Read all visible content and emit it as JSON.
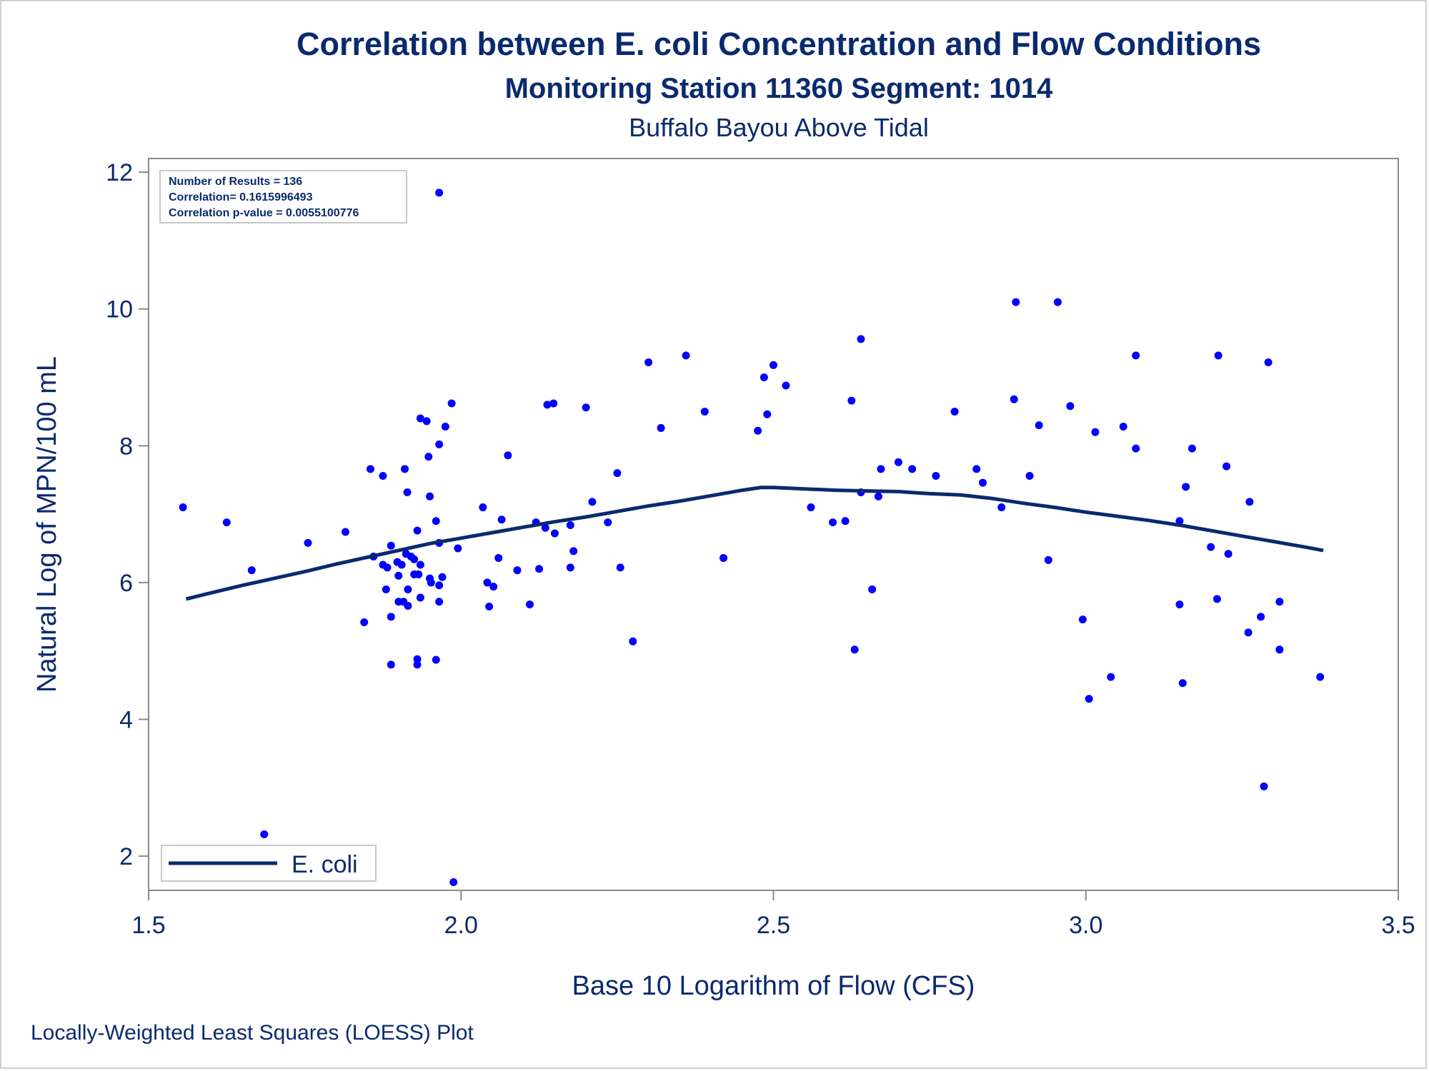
{
  "chart_data": {
    "type": "scatter",
    "title": "Correlation between E. coli Concentration and Flow Conditions",
    "subtitle": "Monitoring Station 11360 Segment: 1014",
    "subtitle2": "Buffalo Bayou Above Tidal",
    "xlabel": "Base 10 Logarithm of Flow (CFS)",
    "ylabel": "Natural Log of MPN/100 mL",
    "footnote": "Locally-Weighted Least Squares (LOESS) Plot",
    "xlim": [
      1.5,
      3.5
    ],
    "ylim": [
      1.5,
      12.2
    ],
    "xticks": [
      1.5,
      2.0,
      2.5,
      3.0,
      3.5
    ],
    "xtick_labels": [
      "1.5",
      "2.0",
      "2.5",
      "3.0",
      "3.5"
    ],
    "yticks": [
      2,
      4,
      6,
      8,
      10,
      12
    ],
    "ytick_labels": [
      "2",
      "4",
      "6",
      "8",
      "10",
      "12"
    ],
    "grid": false,
    "legend_position": "bottom-left",
    "inset": {
      "lines": [
        "Number of Results = 136",
        "Correlation= 0.1615996493",
        "Correlation p-value = 0.0055100776"
      ],
      "position": "top-left"
    },
    "colors": {
      "points": "#0000ff",
      "line": "#0a2a6e",
      "text": "#0a2a6e",
      "axis": "#8a8a8a"
    },
    "series": [
      {
        "name": "E. coli",
        "kind": "loess-line",
        "x": [
          1.56,
          1.6,
          1.65,
          1.7,
          1.75,
          1.8,
          1.85,
          1.9,
          1.95,
          2.0,
          2.05,
          2.1,
          2.15,
          2.2,
          2.25,
          2.3,
          2.35,
          2.4,
          2.45,
          2.48,
          2.5,
          2.55,
          2.6,
          2.65,
          2.7,
          2.75,
          2.8,
          2.85,
          2.9,
          2.95,
          3.0,
          3.05,
          3.1,
          3.15,
          3.2,
          3.25,
          3.3,
          3.35,
          3.38
        ],
        "y": [
          5.76,
          5.85,
          5.96,
          6.06,
          6.16,
          6.27,
          6.37,
          6.47,
          6.57,
          6.65,
          6.73,
          6.81,
          6.89,
          6.96,
          7.04,
          7.12,
          7.19,
          7.27,
          7.35,
          7.39,
          7.39,
          7.37,
          7.35,
          7.34,
          7.33,
          7.3,
          7.28,
          7.23,
          7.16,
          7.1,
          7.03,
          6.97,
          6.91,
          6.84,
          6.76,
          6.68,
          6.6,
          6.52,
          6.47
        ]
      },
      {
        "kind": "points",
        "points": [
          [
            1.555,
            7.1
          ],
          [
            1.625,
            6.88
          ],
          [
            1.665,
            6.18
          ],
          [
            1.685,
            2.32
          ],
          [
            1.755,
            6.58
          ],
          [
            1.815,
            6.74
          ],
          [
            1.845,
            5.42
          ],
          [
            1.855,
            7.66
          ],
          [
            1.86,
            6.38
          ],
          [
            1.875,
            7.56
          ],
          [
            1.875,
            6.26
          ],
          [
            1.88,
            5.9
          ],
          [
            1.882,
            6.22
          ],
          [
            1.888,
            6.54
          ],
          [
            1.888,
            5.5
          ],
          [
            1.888,
            4.8
          ],
          [
            1.898,
            6.3
          ],
          [
            1.9,
            6.1
          ],
          [
            1.9,
            5.72
          ],
          [
            1.905,
            6.26
          ],
          [
            1.908,
            5.72
          ],
          [
            1.91,
            7.66
          ],
          [
            1.912,
            6.42
          ],
          [
            1.914,
            7.32
          ],
          [
            1.915,
            5.9
          ],
          [
            1.915,
            5.66
          ],
          [
            1.92,
            6.38
          ],
          [
            1.925,
            6.34
          ],
          [
            1.925,
            6.12
          ],
          [
            1.93,
            6.76
          ],
          [
            1.93,
            4.88
          ],
          [
            1.93,
            4.8
          ],
          [
            1.932,
            6.12
          ],
          [
            1.935,
            5.78
          ],
          [
            1.935,
            6.26
          ],
          [
            1.935,
            8.4
          ],
          [
            1.945,
            8.36
          ],
          [
            1.948,
            7.84
          ],
          [
            1.95,
            7.26
          ],
          [
            1.95,
            6.06
          ],
          [
            1.952,
            6.0
          ],
          [
            1.96,
            6.9
          ],
          [
            1.96,
            4.87
          ],
          [
            1.965,
            11.7
          ],
          [
            1.965,
            8.02
          ],
          [
            1.965,
            6.58
          ],
          [
            1.965,
            5.96
          ],
          [
            1.965,
            5.72
          ],
          [
            1.97,
            6.08
          ],
          [
            1.975,
            8.28
          ],
          [
            1.985,
            8.62
          ],
          [
            1.988,
            1.62
          ],
          [
            1.995,
            6.5
          ],
          [
            2.035,
            7.1
          ],
          [
            2.042,
            6.0
          ],
          [
            2.045,
            5.65
          ],
          [
            2.052,
            5.94
          ],
          [
            2.06,
            6.36
          ],
          [
            2.065,
            6.92
          ],
          [
            2.075,
            7.86
          ],
          [
            2.09,
            6.18
          ],
          [
            2.11,
            5.68
          ],
          [
            2.12,
            6.88
          ],
          [
            2.125,
            6.2
          ],
          [
            2.135,
            6.8
          ],
          [
            2.138,
            8.6
          ],
          [
            2.148,
            8.62
          ],
          [
            2.15,
            6.72
          ],
          [
            2.175,
            6.84
          ],
          [
            2.175,
            6.22
          ],
          [
            2.18,
            6.46
          ],
          [
            2.2,
            8.56
          ],
          [
            2.21,
            7.18
          ],
          [
            2.235,
            6.88
          ],
          [
            2.25,
            7.6
          ],
          [
            2.255,
            6.22
          ],
          [
            2.275,
            5.14
          ],
          [
            2.3,
            9.22
          ],
          [
            2.32,
            8.26
          ],
          [
            2.36,
            9.32
          ],
          [
            2.39,
            8.5
          ],
          [
            2.42,
            6.36
          ],
          [
            2.475,
            8.22
          ],
          [
            2.485,
            9.0
          ],
          [
            2.49,
            8.46
          ],
          [
            2.5,
            9.18
          ],
          [
            2.52,
            8.88
          ],
          [
            2.56,
            7.1
          ],
          [
            2.595,
            6.88
          ],
          [
            2.615,
            6.9
          ],
          [
            2.625,
            8.66
          ],
          [
            2.63,
            5.02
          ],
          [
            2.64,
            9.56
          ],
          [
            2.64,
            7.32
          ],
          [
            2.658,
            5.9
          ],
          [
            2.668,
            7.26
          ],
          [
            2.672,
            7.66
          ],
          [
            2.7,
            7.76
          ],
          [
            2.722,
            7.66
          ],
          [
            2.76,
            7.56
          ],
          [
            2.79,
            8.5
          ],
          [
            2.825,
            7.66
          ],
          [
            2.835,
            7.46
          ],
          [
            2.865,
            7.1
          ],
          [
            2.885,
            8.68
          ],
          [
            2.888,
            10.1
          ],
          [
            2.91,
            7.56
          ],
          [
            2.925,
            8.3
          ],
          [
            2.94,
            6.33
          ],
          [
            2.955,
            10.1
          ],
          [
            2.975,
            8.58
          ],
          [
            2.995,
            5.46
          ],
          [
            3.005,
            4.3
          ],
          [
            3.015,
            8.2
          ],
          [
            3.04,
            4.62
          ],
          [
            3.06,
            8.28
          ],
          [
            3.08,
            9.32
          ],
          [
            3.08,
            7.96
          ],
          [
            3.15,
            6.9
          ],
          [
            3.15,
            5.68
          ],
          [
            3.155,
            4.53
          ],
          [
            3.16,
            7.4
          ],
          [
            3.17,
            7.96
          ],
          [
            3.2,
            6.52
          ],
          [
            3.21,
            5.76
          ],
          [
            3.212,
            9.32
          ],
          [
            3.225,
            7.7
          ],
          [
            3.228,
            6.42
          ],
          [
            3.26,
            5.27
          ],
          [
            3.262,
            7.18
          ],
          [
            3.28,
            5.5
          ],
          [
            3.285,
            3.02
          ],
          [
            3.292,
            9.22
          ],
          [
            3.31,
            5.02
          ],
          [
            3.31,
            5.72
          ],
          [
            3.375,
            4.62
          ]
        ]
      }
    ]
  }
}
